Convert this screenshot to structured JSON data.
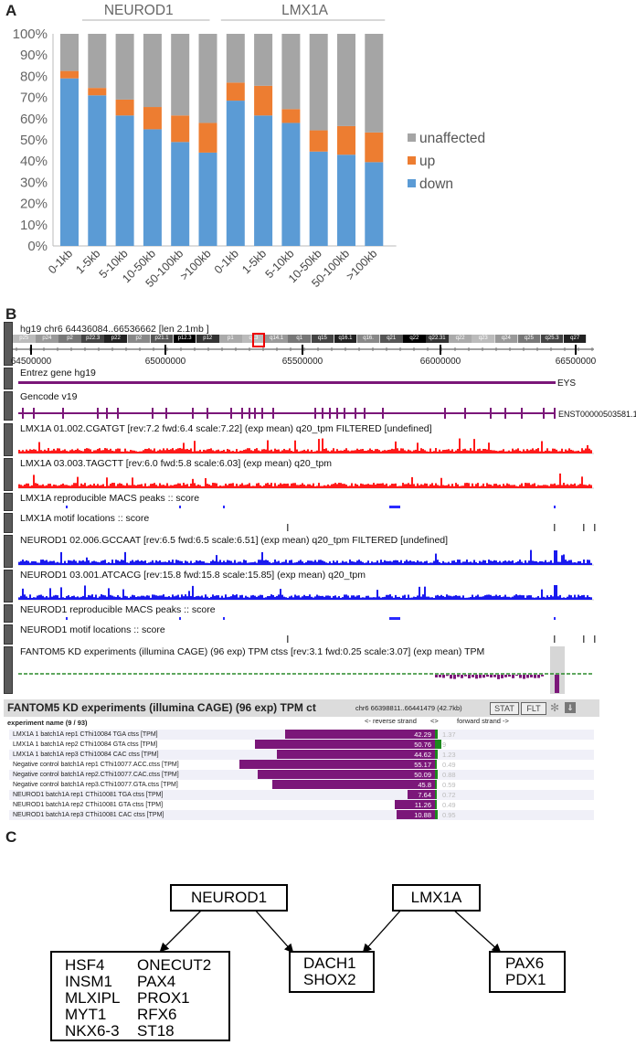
{
  "panel_a": {
    "label": "A",
    "group_labels": [
      "NEUROD1",
      "LMX1A"
    ],
    "chart_data": {
      "type": "bar",
      "stacked": true,
      "categories": [
        "0-1kb",
        "1-5kb",
        "5-10kb",
        "10-50kb",
        "50-100kb",
        ">100kb",
        "0-1kb",
        "1-5kb",
        "5-10kb",
        "10-50kb",
        "50-100kb",
        ">100kb"
      ],
      "series": [
        {
          "name": "down",
          "color": "#5b9bd5",
          "values": [
            79,
            71,
            61.5,
            55,
            49,
            44,
            68.5,
            61.5,
            58,
            44.5,
            43,
            39.5
          ]
        },
        {
          "name": "up",
          "color": "#ed7d31",
          "values": [
            3.5,
            3.5,
            7.5,
            10.5,
            12.5,
            14,
            8.5,
            14,
            6.5,
            10,
            13.5,
            14
          ]
        },
        {
          "name": "unaffected",
          "color": "#a5a5a5",
          "values": [
            17.5,
            25.5,
            31,
            34.5,
            38.5,
            42,
            23,
            24.5,
            35.5,
            45.5,
            43.5,
            46.5
          ]
        }
      ],
      "y_ticks": [
        "0%",
        "10%",
        "20%",
        "30%",
        "40%",
        "50%",
        "60%",
        "70%",
        "80%",
        "90%",
        "100%"
      ],
      "ylim": [
        0,
        100
      ],
      "legend": [
        "unaffected",
        "up",
        "down"
      ],
      "legend_position": "right"
    }
  },
  "panel_b": {
    "label": "B",
    "header": "hg19 chr6 64436084..66536662 [len 2.1mb ]",
    "chromosome_bands": [
      "p25",
      "p24",
      "p2",
      "p22.3",
      "p22",
      "p2",
      "p21.1",
      "p12.3",
      "p12",
      "p1",
      "q13",
      "q14.1",
      "q1",
      "q15",
      "q16.1",
      "q16.",
      "q21",
      "q22",
      "q22.31",
      "q22",
      "q23",
      "q24",
      "q25",
      "q25.3",
      "q27"
    ],
    "ruler_ticks": [
      "64500000",
      "65000000",
      "65500000",
      "66000000",
      "66500000"
    ],
    "tracks": [
      {
        "title": "Entrez gene hg19",
        "label": "EYS"
      },
      {
        "title": "Gencode v19",
        "label": "ENST00000503581.1"
      },
      {
        "title": "LMX1A 01.002.CGATGT [rev:7.2 fwd:6.4 scale:7.22] (exp mean) q20_tpm FILTERED [undefined]"
      },
      {
        "title": "LMX1A 03.003.TAGCTT [rev:6.0 fwd:5.8 scale:6.03] (exp mean) q20_tpm"
      },
      {
        "title": "LMX1A reproducible MACS peaks :: score"
      },
      {
        "title": "LMX1A motif locations :: score"
      },
      {
        "title": "NEUROD1 02.006.GCCAAT [rev:6.5 fwd:6.5 scale:6.51] (exp mean) q20_tpm FILTERED [undefined]"
      },
      {
        "title": "NEUROD1 03.001.ATCACG [rev:15.8 fwd:15.8 scale:15.85] (exp mean) q20_tpm"
      },
      {
        "title": "NEUROD1 reproducible MACS peaks :: score"
      },
      {
        "title": "NEUROD1 motif locations :: score"
      },
      {
        "title": "FANTOM5 KD experiments (illumina CAGE) (96 exp) TPM ctss [rev:3.1 fwd:0.25 scale:3.07] (exp mean) TPM"
      }
    ],
    "table": {
      "title": "FANTOM5 KD experiments (illumina CAGE) (96 exp) TPM ct",
      "subtitle": "chr6 66398811..66441479 (42.7kb)",
      "stat_btn": "STAT",
      "flt_btn": "FLT",
      "col_name": "experiment name (9 / 93)",
      "col_rev": "<- reverse strand",
      "col_mid": "<>",
      "col_fwd": "forward strand ->",
      "rows": [
        {
          "name": "LMX1A 1 batch1A rep1 CThi10084 TGA ctss [TPM]",
          "rev": "42.29",
          "fwd": "1.37"
        },
        {
          "name": "LMX1A 1 batch1A rep2 CThi10084 GTA ctss [TPM]",
          "rev": "50.76",
          "fwd": "9"
        },
        {
          "name": "LMX1A 1 batch1A rep3 CThi10084 CAC ctss [TPM]",
          "rev": "44.62",
          "fwd": "1.23"
        },
        {
          "name": "Negative control batch1A rep1 CThi10077.ACC.ctss [TPM]",
          "rev": "55.17",
          "fwd": "0.49"
        },
        {
          "name": "Negative control batch1A rep2.CThi10077.CAC.ctss [TPM]",
          "rev": "50.09",
          "fwd": "0.88"
        },
        {
          "name": "Negative control batch1A rep3.CThi10077.GTA.ctss [TPM]",
          "rev": "45.8",
          "fwd": "0.59"
        },
        {
          "name": "NEUROD1 batch1A rep1 CThi10081 TGA ctss [TPM]",
          "rev": "7.64",
          "fwd": "0.72"
        },
        {
          "name": "NEUROD1 batch1A rep2 CThi10081 GTA ctss [TPM]",
          "rev": "11.26",
          "fwd": "0.49"
        },
        {
          "name": "NEUROD1 batch1A rep3 CThi10081 CAC ctss [TPM]",
          "rev": "10.88",
          "fwd": "0.95"
        }
      ]
    }
  },
  "panel_c": {
    "label": "C",
    "neurod1": "NEUROD1",
    "lmx1a": "LMX1A",
    "neurod1_targets_col1": [
      "HSF4",
      "INSM1",
      "MLXIPL",
      "MYT1",
      "NKX6-3"
    ],
    "neurod1_targets_col2": [
      "ONECUT2",
      "PAX4",
      "PROX1",
      "RFX6",
      "ST18"
    ],
    "shared_targets": [
      "DACH1",
      "SHOX2"
    ],
    "lmx1a_targets": [
      "PAX6",
      "PDX1"
    ]
  }
}
